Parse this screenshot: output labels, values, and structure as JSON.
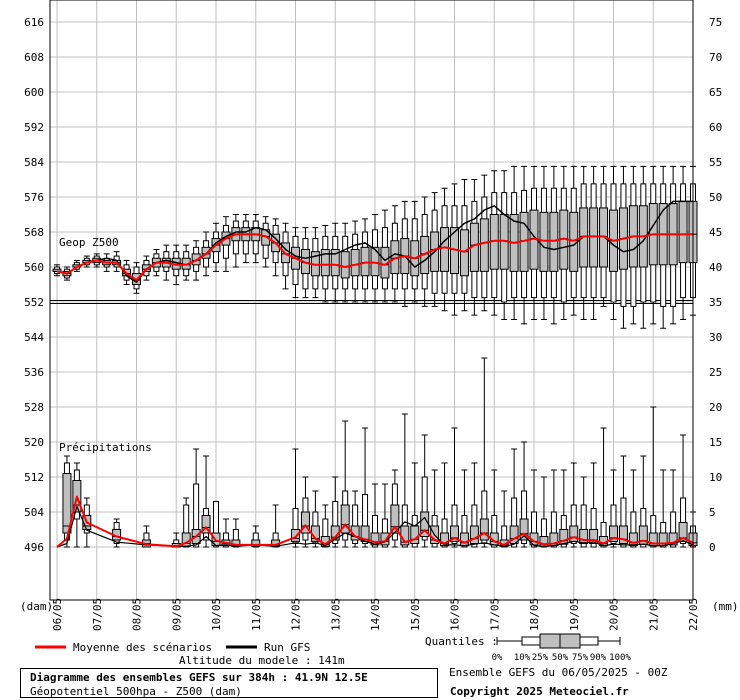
{
  "chart_data": {
    "type": "box",
    "left_axis": {
      "unit_label": "(dam)",
      "ticks": [
        616,
        608,
        600,
        592,
        584,
        576,
        568,
        560,
        552,
        544,
        536,
        528,
        520,
        512,
        504,
        496
      ]
    },
    "right_axis": {
      "unit_label": "(mm)",
      "ticks": [
        75,
        70,
        65,
        60,
        55,
        50,
        45,
        40,
        35,
        30,
        25,
        20,
        15,
        10,
        5,
        0
      ]
    },
    "x_ticks": [
      "06/05",
      "07/05",
      "08/05",
      "09/05",
      "10/05",
      "11/05",
      "12/05",
      "13/05",
      "14/05",
      "15/05",
      "16/05",
      "17/05",
      "18/05",
      "19/05",
      "20/05",
      "21/05",
      "22/05"
    ],
    "grid": true,
    "geop_label": "Geop Z500",
    "precip_label": "Précipitations",
    "reference_line_dam": 552,
    "series": [
      {
        "name": "Moyenne des scénarios",
        "color": "#ff0000"
      },
      {
        "name": "Run GFS",
        "color": "#000000"
      }
    ],
    "z500": {
      "days": [
        0,
        0.25,
        0.5,
        0.75,
        1,
        1.25,
        1.5,
        1.75,
        2,
        2.25,
        2.5,
        2.75,
        3,
        3.25,
        3.5,
        3.75,
        4,
        4.25,
        4.5,
        4.75,
        5,
        5.25,
        5.5,
        5.75,
        6,
        6.25,
        6.5,
        6.75,
        7,
        7.25,
        7.5,
        7.75,
        8,
        8.25,
        8.5,
        8.75,
        9,
        9.25,
        9.5,
        9.75,
        10,
        10.25,
        10.5,
        10.75,
        11,
        11.25,
        11.5,
        11.75,
        12,
        12.25,
        12.5,
        12.75,
        13,
        13.25,
        13.5,
        13.75,
        14,
        14.25,
        14.5,
        14.75,
        15,
        15.25,
        15.5,
        15.75,
        16
      ],
      "mean": [
        559,
        558.5,
        560,
        561,
        561.5,
        561,
        561,
        558.5,
        557,
        559.5,
        561,
        561,
        560.5,
        560.5,
        561.5,
        563,
        565,
        566.5,
        567.5,
        567.5,
        567.5,
        567,
        565.5,
        563,
        562,
        561,
        560.5,
        560.5,
        560.5,
        560,
        560.5,
        561,
        561,
        560.5,
        562,
        562.5,
        562,
        563,
        564,
        564.5,
        564,
        563.5,
        565,
        565.5,
        566,
        566,
        565.5,
        566,
        566.5,
        566,
        566,
        566.5,
        566,
        567,
        567,
        567,
        566,
        566.5,
        567,
        567,
        567.5,
        567.5,
        567.5,
        567.5,
        567.5
      ],
      "run_gfs": [
        559,
        558.5,
        560,
        561,
        561.5,
        562,
        561.5,
        558,
        556.5,
        559.5,
        561,
        561.5,
        561,
        560.5,
        561.5,
        563,
        565.5,
        567,
        568,
        568,
        569,
        568.5,
        566.5,
        564,
        562.5,
        562,
        562.5,
        563,
        563,
        564,
        565,
        565.5,
        564,
        561.5,
        563,
        562.5,
        560,
        561.5,
        563.5,
        566,
        568,
        570,
        571,
        573,
        574,
        572,
        570.5,
        570,
        567,
        564.5,
        564,
        564.5,
        565,
        567,
        567,
        567,
        565,
        563.5,
        564,
        566,
        569.5,
        573,
        575,
        575,
        575
      ],
      "q0": [
        558,
        557,
        559,
        560,
        560,
        559,
        559,
        556,
        554,
        557,
        558,
        557,
        556,
        557,
        557,
        558,
        559,
        559,
        560,
        561,
        561,
        560,
        558,
        555,
        553,
        553,
        553,
        552,
        552,
        552,
        552,
        552,
        552,
        552,
        552,
        551,
        552,
        551,
        551,
        550,
        549,
        550,
        549,
        550,
        549,
        548,
        548,
        547,
        548,
        548,
        547,
        548,
        549,
        548,
        548,
        551,
        548,
        546,
        547,
        546,
        547,
        546,
        547,
        548,
        549
      ],
      "q10": [
        558.5,
        557.5,
        559.5,
        560.5,
        560.5,
        560,
        560,
        557,
        555,
        558,
        559,
        559,
        558,
        558,
        559,
        560,
        561,
        562,
        563,
        563,
        563,
        562,
        561,
        558,
        556,
        555,
        555,
        555,
        555,
        555,
        555,
        555,
        555,
        555,
        555,
        555,
        555,
        555,
        554,
        554,
        554,
        554,
        553,
        553,
        553,
        552,
        553,
        553,
        553,
        553,
        553,
        552,
        553,
        553,
        553,
        553,
        552,
        551,
        551,
        552,
        552,
        551,
        551,
        553,
        553
      ],
      "q25": [
        559,
        558,
        560,
        561,
        561,
        560.5,
        560.5,
        558,
        556,
        559,
        560,
        560,
        559.5,
        559.5,
        560.5,
        562,
        563.5,
        565,
        566,
        566,
        566,
        565,
        563.5,
        561,
        559.5,
        558.5,
        558,
        558,
        558,
        557.5,
        558,
        558,
        558,
        557.5,
        558.5,
        558.5,
        558,
        558.5,
        559,
        559,
        558.5,
        558,
        559,
        559,
        559.5,
        559.5,
        559,
        559,
        559.5,
        559,
        559,
        559.5,
        559,
        560,
        560,
        560,
        559,
        559.5,
        560,
        560,
        560.5,
        560.5,
        560.5,
        561,
        561
      ],
      "q50": [
        559,
        558.5,
        560,
        561,
        561.5,
        561,
        561,
        558.5,
        557,
        559.5,
        561,
        561,
        560.5,
        560.5,
        561.5,
        563,
        565,
        566.5,
        567.5,
        567.5,
        567.5,
        567,
        565.5,
        563,
        562,
        561,
        560.5,
        560.5,
        560.5,
        560,
        560.5,
        561,
        561,
        560.5,
        562,
        562.5,
        562,
        563,
        564,
        564.5,
        564,
        563.5,
        565,
        565.5,
        566,
        566,
        565.5,
        566,
        566.5,
        566,
        566,
        566.5,
        566,
        567,
        567,
        567,
        566,
        566.5,
        567,
        567,
        567.5,
        567.5,
        567.5,
        567.5,
        567.5
      ],
      "q75": [
        559.5,
        559,
        560.5,
        561.5,
        562,
        561.5,
        561.5,
        559.5,
        558.5,
        560.5,
        562,
        562,
        562,
        562,
        563,
        564.5,
        566.5,
        568,
        569,
        569,
        569,
        568.5,
        567.5,
        565.5,
        564.5,
        564,
        563.5,
        564,
        564,
        563.5,
        564,
        564.5,
        564.5,
        564.5,
        566,
        566.5,
        566,
        567,
        568,
        569,
        569,
        568.5,
        570,
        571,
        572,
        572,
        572,
        572.5,
        573,
        572.5,
        572.5,
        573,
        572.5,
        573.5,
        573.5,
        573.5,
        573,
        573.5,
        574,
        574,
        574.5,
        574.5,
        574.5,
        575,
        575
      ],
      "q90": [
        560,
        559.5,
        561,
        562,
        562.5,
        562,
        562.5,
        560.5,
        560,
        561.5,
        563,
        563.5,
        563.5,
        563.5,
        564.5,
        566,
        568,
        569.5,
        570.5,
        570.5,
        570.5,
        570,
        569.5,
        568,
        567,
        566.5,
        566.5,
        567,
        567,
        567,
        567.5,
        568,
        568.5,
        569,
        570,
        571,
        571,
        572,
        573,
        574,
        574,
        574,
        575,
        576,
        577,
        577,
        577,
        577.5,
        578,
        578,
        578,
        578,
        578,
        579,
        579,
        579,
        579,
        579,
        579,
        579,
        579,
        579,
        579,
        579,
        579
      ],
      "q100": [
        560.5,
        560,
        561.5,
        562.5,
        563,
        563,
        563.5,
        561.5,
        561,
        562.5,
        564,
        565,
        565,
        565,
        566,
        568,
        570,
        571.5,
        572,
        572,
        572,
        571.5,
        571,
        570,
        569,
        569,
        569,
        569.5,
        570,
        570,
        570.5,
        571,
        572,
        573,
        574,
        575,
        575,
        576,
        577,
        578,
        579,
        580,
        580,
        581,
        582,
        582,
        583,
        583,
        583,
        583,
        583,
        583,
        583,
        583,
        583,
        583,
        583,
        583,
        583,
        583,
        583,
        583,
        583,
        583,
        583
      ]
    },
    "precip": {
      "days": [
        0.25,
        0.5,
        0.75,
        1.5,
        2.25,
        3,
        3.25,
        3.5,
        3.75,
        4,
        4.25,
        4.5,
        5,
        5.5,
        6,
        6.25,
        6.5,
        6.75,
        7,
        7.25,
        7.5,
        7.75,
        8,
        8.25,
        8.5,
        8.75,
        9,
        9.25,
        9.5,
        9.75,
        10,
        10.25,
        10.5,
        10.75,
        11,
        11.25,
        11.5,
        11.75,
        12,
        12.25,
        12.5,
        12.75,
        13,
        13.25,
        13.5,
        13.75,
        14,
        14.25,
        14.5,
        14.75,
        15,
        15.25,
        15.5,
        15.75,
        16
      ],
      "mean": [
        1.2,
        7.2,
        3.5,
        1.5,
        0.4,
        0.1,
        0.6,
        1.5,
        2.8,
        0.9,
        0.6,
        0.3,
        0.3,
        0.3,
        1.4,
        3.1,
        1.2,
        0.4,
        1.4,
        3.2,
        1.5,
        1.1,
        0.7,
        0.8,
        2.9,
        0.7,
        1.1,
        2.4,
        1.0,
        0.5,
        1.3,
        0.6,
        1.2,
        2.0,
        0.8,
        0.3,
        1.2,
        1.9,
        0.8,
        0.4,
        0.5,
        0.9,
        1.4,
        1.0,
        1.0,
        0.5,
        1.3,
        1.1,
        0.6,
        0.9,
        0.5,
        0.5,
        0.6,
        1.3,
        0.6
      ],
      "run_gfs": [
        0.5,
        5.8,
        2.4,
        0.7,
        0.3,
        0.1,
        0.1,
        0.3,
        1.5,
        0.2,
        0.3,
        0.1,
        0.3,
        0.1,
        0.6,
        0.4,
        0.6,
        0.2,
        1.1,
        2.0,
        1.5,
        0.8,
        0.4,
        0.7,
        2.1,
        3.6,
        3.0,
        4.2,
        1.7,
        0.3,
        0.3,
        0.2,
        0.4,
        0.6,
        0.3,
        0.1,
        0.4,
        1.6,
        0.2,
        0.1,
        0.2,
        0.5,
        0.8,
        0.6,
        0.7,
        0.2,
        0.4,
        0.3,
        0.3,
        0.4,
        0.2,
        0.2,
        0.5,
        0.9,
        0.3
      ],
      "q10": [
        1,
        4,
        2,
        0.5,
        0,
        0,
        0,
        0,
        1,
        0,
        0,
        0,
        0,
        0,
        0.5,
        1,
        0.5,
        0,
        0.5,
        1,
        0.5,
        0.5,
        0,
        0,
        1,
        0,
        0,
        1,
        0,
        0,
        0.5,
        0,
        0,
        0.5,
        0,
        0,
        0,
        0.5,
        0,
        0,
        0,
        0,
        0.5,
        0,
        0,
        0,
        0.5,
        0,
        0,
        0,
        0,
        0,
        0,
        0.5,
        0
      ],
      "q25": [
        2,
        5,
        2.5,
        1,
        0,
        0,
        0.1,
        0.5,
        2,
        0.2,
        0.2,
        0.1,
        0.1,
        0.1,
        0.8,
        2,
        0.8,
        0.1,
        1,
        2,
        1,
        0.8,
        0.3,
        0.3,
        2,
        0.3,
        0.5,
        1.5,
        0.5,
        0.2,
        0.8,
        0.2,
        0.5,
        1,
        0.3,
        0.1,
        0.5,
        1,
        0.3,
        0.1,
        0.2,
        0.4,
        0.8,
        0.5,
        0.5,
        0.2,
        0.8,
        0.5,
        0.2,
        0.4,
        0.2,
        0.2,
        0.3,
        0.8,
        0.2
      ],
      "q50": [
        3,
        6,
        3,
        1.5,
        0.5,
        0.2,
        0.5,
        1.5,
        2.8,
        0.8,
        0.5,
        0.3,
        0.3,
        0.3,
        1.2,
        3,
        1.2,
        0.4,
        1.4,
        3.2,
        1.5,
        1.1,
        0.7,
        0.8,
        2.9,
        0.7,
        1.1,
        2.4,
        1,
        0.5,
        1.3,
        0.6,
        1.2,
        2,
        0.8,
        0.3,
        1.2,
        1.9,
        0.8,
        0.4,
        0.5,
        0.9,
        1.4,
        1,
        1,
        0.5,
        1.3,
        1.1,
        0.6,
        0.9,
        0.5,
        0.5,
        0.6,
        1.3,
        0.6
      ],
      "q75": [
        10.5,
        9.5,
        4.5,
        2.5,
        1,
        0.5,
        2,
        2.5,
        4.5,
        2,
        1,
        1,
        1,
        1,
        2.5,
        5,
        3,
        1.5,
        3,
        6,
        3,
        3,
        2,
        2,
        6,
        3,
        3,
        5,
        3,
        2,
        3,
        2,
        3,
        4,
        2,
        1,
        3,
        4,
        2,
        1.5,
        2,
        2.5,
        3,
        2.5,
        2.5,
        1.5,
        3,
        3,
        2,
        3,
        2,
        2,
        2,
        3.5,
        2
      ],
      "q90": [
        12,
        11,
        6,
        3.5,
        2,
        1,
        6,
        9,
        5.5,
        6.5,
        2,
        2.5,
        2,
        2,
        5.5,
        7,
        5,
        4,
        6.5,
        8,
        6,
        7.5,
        4.5,
        4,
        9,
        6,
        4.5,
        10,
        4.5,
        4,
        6,
        4.5,
        6,
        8,
        4.5,
        3,
        7,
        8,
        5,
        4,
        5,
        4.5,
        6,
        6,
        5.5,
        3.5,
        6,
        7,
        5,
        5.5,
        4.5,
        3.5,
        5,
        7,
        3
      ],
      "q100": [
        13,
        12,
        7,
        4,
        3,
        2,
        7,
        14,
        13,
        6,
        4,
        4,
        3,
        6,
        14,
        10,
        8,
        6,
        10,
        18,
        8,
        17,
        9,
        9,
        11,
        19,
        12,
        16,
        11,
        12,
        17,
        11,
        12,
        27,
        11,
        8,
        14,
        15,
        11,
        10,
        11,
        11,
        12,
        10,
        12,
        17,
        11,
        13,
        11,
        13,
        20,
        11,
        11,
        16,
        5
      ]
    }
  },
  "legend": {
    "mean_label": "Moyenne des scénarios",
    "run_label": "Run GFS",
    "altitude": "Altitude du modele : 141m",
    "quantiles_label": "Quantiles :",
    "quantile_ticks": [
      "0%",
      "10%",
      "25%",
      "50%",
      "75%",
      "90%",
      "100%"
    ],
    "ensemble": "Ensemble GEFS du 06/05/2025 - 00Z",
    "copyright": "Copyright 2025 Meteociel.fr"
  },
  "info": {
    "line1": "Diagramme des ensembles GEFS sur 384h : 41.9N 12.5E",
    "line2": "Géopotentiel 500hpa - Z500 (dam)"
  },
  "colors": {
    "mean": "#ff0000",
    "run": "#000000",
    "box": "#bfbfbf",
    "grid": "#c0c0c0"
  }
}
